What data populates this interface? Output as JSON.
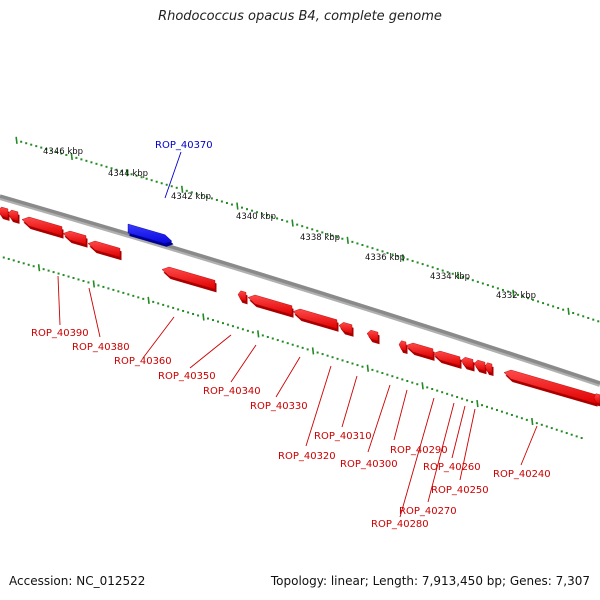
{
  "title": "Rhodococcus opacus B4, complete genome",
  "accession": "Accession: NC_012522",
  "summary": "Topology: linear; Length: 7,913,450 bp; Genes: 7,307",
  "colors": {
    "backbone": "#8a8a8a",
    "ruler": "#228b22",
    "forward_gene": "#1010ee",
    "reverse_gene": "#ee0000",
    "forward_label": "#0000cc",
    "reverse_label": "#cc0000"
  },
  "ruler_labels": [
    "4346 kbp",
    "4344 kbp",
    "4342 kbp",
    "4340 kbp",
    "4338 kbp",
    "4336 kbp",
    "4334 kbp",
    "4332 kbp"
  ],
  "forward_genes": [
    {
      "label": "ROP_40370"
    }
  ],
  "reverse_genes": [
    {
      "label": "ROP_40390"
    },
    {
      "label": "ROP_40380"
    },
    {
      "label": "ROP_40360"
    },
    {
      "label": "ROP_40350"
    },
    {
      "label": "ROP_40340"
    },
    {
      "label": "ROP_40330"
    },
    {
      "label": "ROP_40320"
    },
    {
      "label": "ROP_40310"
    },
    {
      "label": "ROP_40300"
    },
    {
      "label": "ROP_40290"
    },
    {
      "label": "ROP_40280"
    },
    {
      "label": "ROP_40270"
    },
    {
      "label": "ROP_40260"
    },
    {
      "label": "ROP_40250"
    },
    {
      "label": "ROP_40240"
    }
  ]
}
